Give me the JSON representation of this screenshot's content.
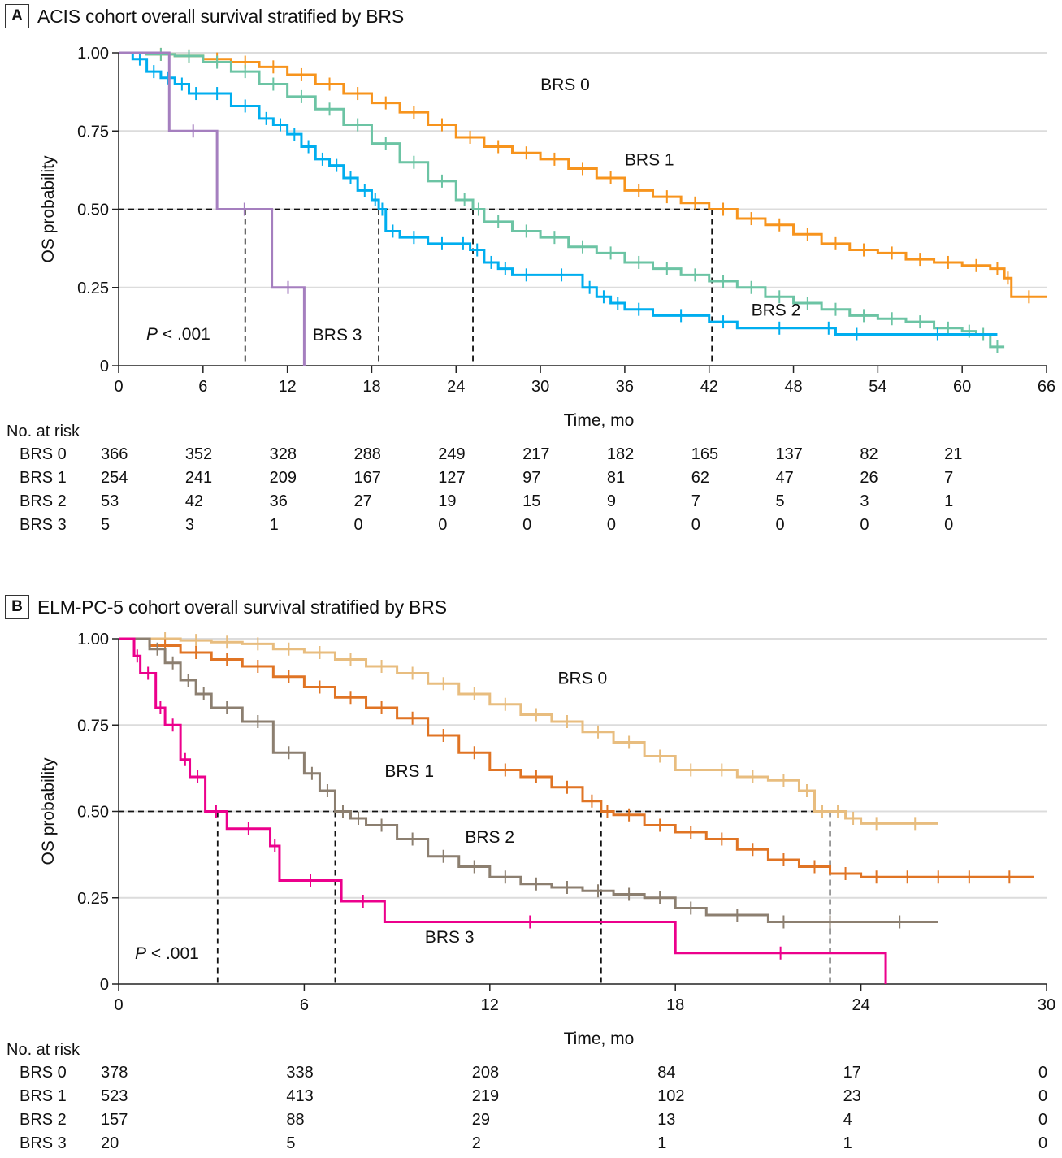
{
  "panels": [
    {
      "letter": "A",
      "title": "ACIS cohort overall survival stratified by BRS",
      "pvalue_prefix": "P",
      "pvalue_rest": " < .001",
      "risk_title": "No. at risk",
      "risk_rows": [
        {
          "label": "BRS 0",
          "values": [
            "366",
            "352",
            "328",
            "288",
            "249",
            "217",
            "182",
            "165",
            "137",
            "82",
            "21"
          ]
        },
        {
          "label": "BRS 1",
          "values": [
            "254",
            "241",
            "209",
            "167",
            "127",
            "97",
            "81",
            "62",
            "47",
            "26",
            "7"
          ]
        },
        {
          "label": "BRS 2",
          "values": [
            "53",
            "42",
            "36",
            "27",
            "19",
            "15",
            "9",
            "7",
            "5",
            "3",
            "1"
          ]
        },
        {
          "label": "BRS 3",
          "values": [
            "5",
            "3",
            "1",
            "0",
            "0",
            "0",
            "0",
            "0",
            "0",
            "0",
            "0"
          ]
        }
      ]
    },
    {
      "letter": "B",
      "title": "ELM-PC-5 cohort overall survival stratified by BRS",
      "pvalue_prefix": "P",
      "pvalue_rest": " < .001",
      "risk_title": "No. at risk",
      "risk_rows": [
        {
          "label": "BRS 0",
          "values": [
            "378",
            "338",
            "208",
            "84",
            "17",
            "0"
          ]
        },
        {
          "label": "BRS 1",
          "values": [
            "523",
            "413",
            "219",
            "102",
            "23",
            "0"
          ]
        },
        {
          "label": "BRS 2",
          "values": [
            "157",
            "88",
            "29",
            "13",
            "4",
            "0"
          ]
        },
        {
          "label": "BRS 3",
          "values": [
            "20",
            "5",
            "2",
            "1",
            "1",
            "0"
          ]
        }
      ]
    }
  ],
  "chart_data": [
    {
      "type": "line",
      "subtype": "kaplan-meier-step",
      "title": "ACIS cohort overall survival stratified by BRS",
      "xlabel": "Time, mo",
      "ylabel": "OS probability",
      "xlim": [
        0,
        66
      ],
      "ylim": [
        0,
        1
      ],
      "xticks": [
        0,
        6,
        12,
        18,
        24,
        30,
        36,
        42,
        48,
        54,
        60,
        66
      ],
      "yticks": [
        0,
        0.25,
        0.5,
        0.75,
        1.0
      ],
      "ytick_labels": [
        "0",
        "0.25",
        "0.50",
        "0.75",
        "1.00"
      ],
      "grid": "horizontal",
      "annotation": "P < .001",
      "median_lines": [
        9.0,
        18.5,
        25.2,
        42.2
      ],
      "series": [
        {
          "name": "BRS 0",
          "color": "#f7941d",
          "x": [
            0,
            2,
            4,
            6,
            8,
            10,
            12,
            14,
            16,
            18,
            20,
            22,
            24,
            26,
            28,
            30,
            32,
            34,
            36,
            38,
            40,
            42,
            44,
            46,
            48,
            50,
            52,
            54,
            56,
            58,
            60,
            62,
            63,
            63.5,
            66
          ],
          "y": [
            1.0,
            0.995,
            0.99,
            0.98,
            0.97,
            0.955,
            0.93,
            0.9,
            0.87,
            0.84,
            0.81,
            0.77,
            0.73,
            0.7,
            0.68,
            0.66,
            0.63,
            0.6,
            0.56,
            0.54,
            0.52,
            0.5,
            0.47,
            0.45,
            0.42,
            0.39,
            0.37,
            0.36,
            0.34,
            0.33,
            0.32,
            0.31,
            0.28,
            0.22,
            0.22
          ],
          "label_at": [
            30,
            0.88
          ]
        },
        {
          "name": "BRS 1",
          "color": "#6cc4a4",
          "x": [
            0,
            2,
            4,
            6,
            8,
            10,
            12,
            14,
            16,
            18,
            20,
            22,
            24,
            25.2,
            26,
            28,
            30,
            32,
            34,
            36,
            38,
            40,
            42,
            44,
            46,
            48,
            50,
            52,
            54,
            56,
            58,
            60,
            61,
            62,
            63
          ],
          "y": [
            1.0,
            0.995,
            0.99,
            0.97,
            0.94,
            0.9,
            0.86,
            0.82,
            0.77,
            0.71,
            0.65,
            0.59,
            0.53,
            0.5,
            0.46,
            0.43,
            0.41,
            0.38,
            0.36,
            0.33,
            0.31,
            0.29,
            0.27,
            0.25,
            0.22,
            0.2,
            0.18,
            0.16,
            0.15,
            0.14,
            0.12,
            0.11,
            0.1,
            0.06,
            0.06
          ],
          "label_at": [
            36,
            0.64
          ]
        },
        {
          "name": "BRS 2",
          "color": "#00aeef",
          "x": [
            0,
            1,
            2,
            3,
            4,
            5,
            6,
            8,
            10,
            11,
            12,
            13,
            14,
            15,
            16,
            17,
            18,
            18.5,
            19,
            20,
            22,
            24,
            25,
            26,
            27,
            28,
            30,
            33,
            34,
            35,
            36,
            38,
            42,
            44,
            50,
            51,
            54,
            62.5
          ],
          "y": [
            1.0,
            0.98,
            0.94,
            0.92,
            0.9,
            0.87,
            0.87,
            0.83,
            0.79,
            0.77,
            0.74,
            0.7,
            0.66,
            0.64,
            0.6,
            0.56,
            0.53,
            0.5,
            0.43,
            0.41,
            0.39,
            0.39,
            0.37,
            0.33,
            0.31,
            0.29,
            0.29,
            0.25,
            0.22,
            0.2,
            0.18,
            0.16,
            0.14,
            0.12,
            0.12,
            0.1,
            0.1,
            0.1
          ],
          "label_at": [
            45,
            0.16
          ]
        },
        {
          "name": "BRS 3",
          "color": "#a57fbf",
          "x": [
            0,
            3.6,
            7.0,
            10.9,
            13.2
          ],
          "y": [
            1.0,
            0.75,
            0.5,
            0.25,
            0.0
          ],
          "label_at": [
            13.8,
            0.08
          ]
        }
      ],
      "risk_times": [
        0,
        6,
        12,
        18,
        24,
        30,
        36,
        42,
        48,
        54,
        60
      ]
    },
    {
      "type": "line",
      "subtype": "kaplan-meier-step",
      "title": "ELM-PC-5 cohort overall survival stratified by BRS",
      "xlabel": "Time, mo",
      "ylabel": "OS probability",
      "xlim": [
        0,
        30
      ],
      "ylim": [
        0,
        1
      ],
      "xticks": [
        0,
        6,
        12,
        18,
        24,
        30
      ],
      "yticks": [
        0,
        0.25,
        0.5,
        0.75,
        1.0
      ],
      "ytick_labels": [
        "0",
        "0.25",
        "0.50",
        "0.75",
        "1.00"
      ],
      "grid": "horizontal",
      "annotation": "P < .001",
      "median_lines": [
        3.2,
        7.0,
        15.6,
        23.0
      ],
      "series": [
        {
          "name": "BRS 0",
          "color": "#e8bd7f",
          "x": [
            0,
            1,
            2,
            3,
            4,
            5,
            6,
            7,
            8,
            9,
            10,
            11,
            12,
            13,
            14,
            15,
            16,
            17,
            18,
            19,
            20,
            21,
            22,
            22.5,
            23,
            23.5,
            24,
            25,
            26.5
          ],
          "y": [
            1.0,
            1.0,
            0.995,
            0.99,
            0.985,
            0.97,
            0.96,
            0.94,
            0.92,
            0.9,
            0.87,
            0.84,
            0.81,
            0.78,
            0.76,
            0.73,
            0.7,
            0.66,
            0.62,
            0.62,
            0.6,
            0.59,
            0.56,
            0.5,
            0.5,
            0.48,
            0.465,
            0.465,
            0.465
          ],
          "label_at": [
            14.2,
            0.87
          ]
        },
        {
          "name": "BRS 1",
          "color": "#e07424",
          "x": [
            0,
            1,
            2,
            3,
            4,
            5,
            6,
            7,
            8,
            9,
            10,
            11,
            12,
            13,
            14,
            15,
            15.6,
            16,
            17,
            18,
            19,
            20,
            21,
            22,
            23,
            24,
            25,
            26,
            27,
            28,
            29.6
          ],
          "y": [
            1.0,
            0.98,
            0.96,
            0.94,
            0.92,
            0.89,
            0.86,
            0.83,
            0.8,
            0.77,
            0.72,
            0.67,
            0.62,
            0.6,
            0.57,
            0.53,
            0.5,
            0.49,
            0.46,
            0.44,
            0.42,
            0.39,
            0.36,
            0.34,
            0.32,
            0.31,
            0.31,
            0.31,
            0.31,
            0.31,
            0.31
          ],
          "label_at": [
            8.6,
            0.6
          ]
        },
        {
          "name": "BRS 2",
          "color": "#8c7f70",
          "x": [
            0,
            1,
            1.5,
            2,
            2.5,
            3,
            4,
            5,
            6,
            6.5,
            7,
            7.5,
            8,
            9,
            10,
            11,
            12,
            13,
            14,
            15,
            16,
            17,
            18,
            19,
            21,
            22,
            24,
            26.5
          ],
          "y": [
            1.0,
            0.97,
            0.93,
            0.88,
            0.84,
            0.8,
            0.76,
            0.67,
            0.61,
            0.56,
            0.5,
            0.48,
            0.46,
            0.42,
            0.37,
            0.34,
            0.31,
            0.29,
            0.28,
            0.27,
            0.26,
            0.25,
            0.22,
            0.2,
            0.18,
            0.18,
            0.18,
            0.18
          ],
          "label_at": [
            11.2,
            0.41
          ]
        },
        {
          "name": "BRS 3",
          "color": "#ec008c",
          "x": [
            0,
            0.5,
            0.7,
            1.2,
            1.5,
            2.0,
            2.3,
            2.8,
            3.5,
            4.9,
            5.2,
            7.2,
            8.6,
            18.0,
            24.8
          ],
          "y": [
            1.0,
            0.95,
            0.9,
            0.8,
            0.75,
            0.65,
            0.6,
            0.5,
            0.45,
            0.4,
            0.3,
            0.24,
            0.18,
            0.09,
            0.0
          ],
          "label_at": [
            9.9,
            0.12
          ]
        }
      ],
      "risk_times": [
        0,
        6,
        12,
        18,
        24,
        30
      ]
    }
  ]
}
